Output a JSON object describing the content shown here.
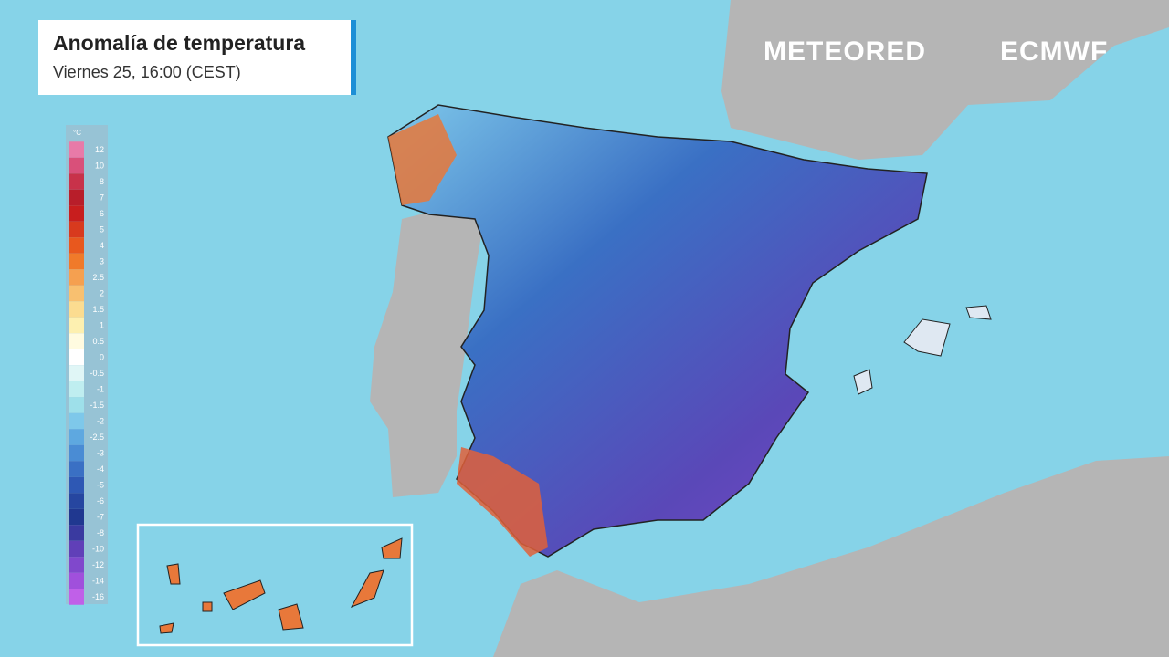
{
  "header": {
    "title": "Anomalía de temperatura",
    "subtitle": "Viernes 25, 16:00 (CEST)"
  },
  "brands": [
    "METEORED",
    "ECMWF"
  ],
  "legend": {
    "unit": "°C",
    "items": [
      {
        "value": 12,
        "color": "#e87aa8"
      },
      {
        "value": 10,
        "color": "#d9507a"
      },
      {
        "value": 8,
        "color": "#c8324a"
      },
      {
        "value": 7,
        "color": "#b81e2a"
      },
      {
        "value": 6,
        "color": "#c81e1e"
      },
      {
        "value": 5,
        "color": "#d83a1e"
      },
      {
        "value": 4,
        "color": "#e8581e"
      },
      {
        "value": 3,
        "color": "#f07a2a"
      },
      {
        "value": 2.5,
        "color": "#f5a050"
      },
      {
        "value": 2,
        "color": "#f8c070"
      },
      {
        "value": 1.5,
        "color": "#fbdc90"
      },
      {
        "value": 1,
        "color": "#fdf0b0"
      },
      {
        "value": 0.5,
        "color": "#fffbe0"
      },
      {
        "value": 0,
        "color": "#ffffff"
      },
      {
        "value": -0.5,
        "color": "#e0f6f6"
      },
      {
        "value": -1,
        "color": "#bfeef0"
      },
      {
        "value": -1.5,
        "color": "#9ee0ea"
      },
      {
        "value": -2,
        "color": "#7ec8ea"
      },
      {
        "value": -2.5,
        "color": "#5ea8e0"
      },
      {
        "value": -3,
        "color": "#4a8cd4"
      },
      {
        "value": -4,
        "color": "#3a70c4"
      },
      {
        "value": -5,
        "color": "#2e58b4"
      },
      {
        "value": -6,
        "color": "#2646a0"
      },
      {
        "value": -7,
        "color": "#203890"
      },
      {
        "value": -8,
        "color": "#3a3aa0"
      },
      {
        "value": -10,
        "color": "#6040b8"
      },
      {
        "value": -12,
        "color": "#8048cc"
      },
      {
        "value": -14,
        "color": "#a050dc"
      },
      {
        "value": -16,
        "color": "#c060e8"
      }
    ]
  }
}
